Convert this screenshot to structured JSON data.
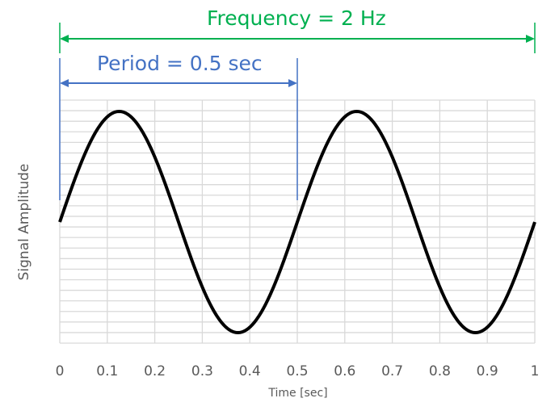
{
  "chart_data": {
    "type": "line",
    "title": "",
    "xlabel": "Time [sec]",
    "ylabel": "Signal Amplitude",
    "xlim": [
      0,
      1
    ],
    "ylim": [
      -1.1,
      1.1
    ],
    "grid": true,
    "x_ticks": [
      "0",
      "0.1",
      "0.2",
      "0.3",
      "0.4",
      "0.5",
      "0.6",
      "0.7",
      "0.8",
      "0.9",
      "1"
    ],
    "series": [
      {
        "function": "sin(2*pi*f*t)",
        "frequency_hz": 2,
        "amplitude": 1,
        "color": "#000000"
      }
    ],
    "annotations": {
      "frequency": {
        "text": "Frequency = 2 Hz",
        "color": "#00b050",
        "x_start": 0,
        "x_end": 1
      },
      "period": {
        "text": "Period = 0.5 sec",
        "color": "#4472c4",
        "x_start": 0,
        "x_end": 0.5
      }
    },
    "colors": {
      "grid": "#d9d9d9",
      "axis_text": "#595959",
      "curve": "#000000"
    }
  }
}
